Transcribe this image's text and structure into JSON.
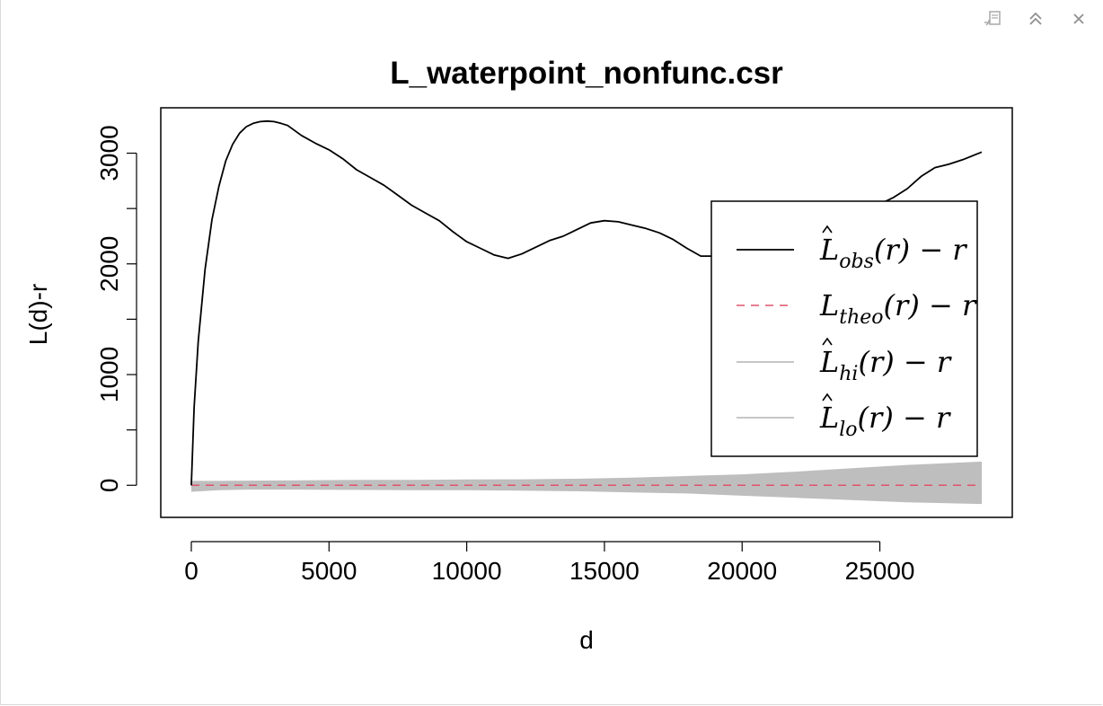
{
  "window": {
    "controls": [
      {
        "name": "export-icon",
        "label": ""
      },
      {
        "name": "collapse-icon",
        "label": ""
      },
      {
        "name": "close-icon",
        "label": ""
      }
    ]
  },
  "chart_data": {
    "type": "line",
    "title": "L_waterpoint_nonfunc.csr",
    "xlabel": "d",
    "ylabel": "L(d)-r",
    "xlim": [
      0,
      28700
    ],
    "ylim": [
      -290,
      3410
    ],
    "xticks": [
      0,
      5000,
      10000,
      15000,
      20000,
      25000
    ],
    "yticks": [
      0,
      1000,
      2000,
      3000
    ],
    "grid": false,
    "legend_position": "right",
    "series": [
      {
        "name": "L̂obs(r) − r",
        "role": "obs",
        "color": "#000000",
        "style": "solid",
        "x": [
          0,
          100,
          250,
          500,
          750,
          1000,
          1250,
          1500,
          1750,
          2000,
          2250,
          2500,
          2750,
          3000,
          3250,
          3500,
          4000,
          4500,
          5000,
          5500,
          6000,
          6500,
          7000,
          7500,
          8000,
          8500,
          9000,
          9500,
          10000,
          10500,
          11000,
          11500,
          12000,
          12500,
          13000,
          13500,
          14000,
          14500,
          15000,
          15500,
          16000,
          16500,
          17000,
          17500,
          18000,
          18500,
          19000,
          19500,
          20000,
          20500,
          21000,
          21500,
          22000,
          22500,
          23000,
          23500,
          24000,
          24500,
          25000,
          25500,
          26000,
          26500,
          27000,
          27500,
          28000,
          28700
        ],
        "y": [
          0,
          700,
          1300,
          1950,
          2400,
          2700,
          2930,
          3080,
          3180,
          3240,
          3270,
          3285,
          3290,
          3285,
          3270,
          3250,
          3160,
          3090,
          3030,
          2950,
          2850,
          2780,
          2710,
          2620,
          2530,
          2460,
          2390,
          2290,
          2200,
          2140,
          2080,
          2050,
          2090,
          2150,
          2210,
          2250,
          2310,
          2370,
          2390,
          2380,
          2350,
          2320,
          2280,
          2220,
          2140,
          2070,
          2070,
          2080,
          2110,
          2160,
          2230,
          2300,
          2350,
          2400,
          2420,
          2440,
          2470,
          2500,
          2540,
          2600,
          2680,
          2790,
          2870,
          2900,
          2940,
          3010
        ]
      },
      {
        "name": "Ltheo(r) − r",
        "role": "theo",
        "color": "#DF536B",
        "style": "dashed",
        "x": [
          0,
          28700
        ],
        "y": [
          0,
          0
        ]
      },
      {
        "name": "L̂hi(r) − r",
        "role": "hi",
        "color": "#BEBEBE",
        "style": "band-upper",
        "x": [
          0,
          1000,
          2000,
          4000,
          6000,
          8000,
          10000,
          12000,
          14000,
          16000,
          18000,
          20000,
          22000,
          24000,
          26000,
          28700
        ],
        "y": [
          35,
          35,
          38,
          40,
          45,
          45,
          48,
          50,
          55,
          65,
          80,
          95,
          120,
          150,
          180,
          210
        ]
      },
      {
        "name": "L̂lo(r) − r",
        "role": "lo",
        "color": "#BEBEBE",
        "style": "band-lower",
        "x": [
          0,
          1000,
          2000,
          4000,
          6000,
          8000,
          10000,
          12000,
          14000,
          16000,
          18000,
          20000,
          22000,
          24000,
          26000,
          28700
        ],
        "y": [
          -55,
          -40,
          -35,
          -35,
          -38,
          -40,
          -40,
          -45,
          -50,
          -60,
          -70,
          -90,
          -110,
          -130,
          -150,
          -165
        ]
      }
    ],
    "legend": [
      {
        "base": "L",
        "hat": true,
        "sub": "obs",
        "tail": "(r) − r",
        "color": "#000000",
        "dash": false
      },
      {
        "base": "L",
        "hat": false,
        "sub": "theo",
        "tail": "(r) − r",
        "color": "#DF536B",
        "dash": true
      },
      {
        "base": "L",
        "hat": true,
        "sub": "hi",
        "tail": "(r) − r",
        "color": "#BEBEBE",
        "dash": false
      },
      {
        "base": "L",
        "hat": true,
        "sub": "lo",
        "tail": "(r) − r",
        "color": "#BEBEBE",
        "dash": false
      }
    ]
  }
}
